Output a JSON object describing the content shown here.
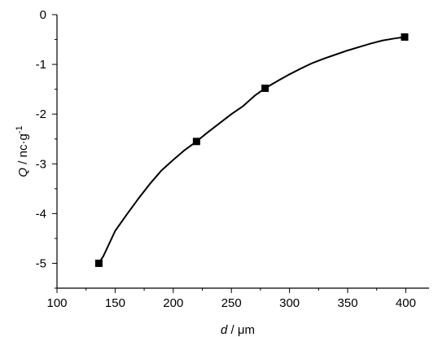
{
  "chart_data": {
    "type": "line",
    "xlabel": {
      "var": "d",
      "unit": " / μm"
    },
    "ylabel": {
      "var": "Q",
      "unit": " / nc·g",
      "sup": "-1"
    },
    "xlim": [
      100,
      420
    ],
    "ylim": [
      -5.5,
      0
    ],
    "xticks": [
      100,
      150,
      200,
      250,
      300,
      350,
      400
    ],
    "yticks": [
      0,
      -1,
      -2,
      -3,
      -4,
      -5
    ],
    "grid": false,
    "markers": [
      {
        "x": 136,
        "y": -5.0
      },
      {
        "x": 220,
        "y": -2.55
      },
      {
        "x": 279,
        "y": -1.48
      },
      {
        "x": 399,
        "y": -0.45
      }
    ],
    "curve": [
      {
        "x": 136,
        "y": -5.0
      },
      {
        "x": 140,
        "y": -4.85
      },
      {
        "x": 145,
        "y": -4.6
      },
      {
        "x": 150,
        "y": -4.35
      },
      {
        "x": 160,
        "y": -4.02
      },
      {
        "x": 170,
        "y": -3.7
      },
      {
        "x": 180,
        "y": -3.4
      },
      {
        "x": 190,
        "y": -3.13
      },
      {
        "x": 200,
        "y": -2.92
      },
      {
        "x": 210,
        "y": -2.72
      },
      {
        "x": 220,
        "y": -2.55
      },
      {
        "x": 230,
        "y": -2.36
      },
      {
        "x": 240,
        "y": -2.18
      },
      {
        "x": 250,
        "y": -2.0
      },
      {
        "x": 260,
        "y": -1.84
      },
      {
        "x": 270,
        "y": -1.63
      },
      {
        "x": 279,
        "y": -1.48
      },
      {
        "x": 290,
        "y": -1.33
      },
      {
        "x": 300,
        "y": -1.2
      },
      {
        "x": 310,
        "y": -1.08
      },
      {
        "x": 320,
        "y": -0.97
      },
      {
        "x": 330,
        "y": -0.88
      },
      {
        "x": 340,
        "y": -0.8
      },
      {
        "x": 350,
        "y": -0.72
      },
      {
        "x": 360,
        "y": -0.65
      },
      {
        "x": 370,
        "y": -0.58
      },
      {
        "x": 380,
        "y": -0.52
      },
      {
        "x": 390,
        "y": -0.48
      },
      {
        "x": 399,
        "y": -0.45
      }
    ]
  }
}
